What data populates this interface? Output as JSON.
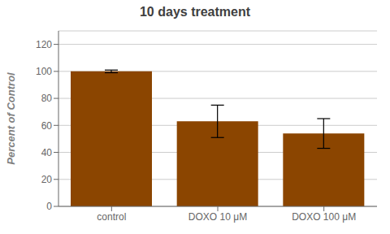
{
  "chart_data": {
    "type": "bar",
    "title": "10 days treatment",
    "ylabel": "Percent of Control",
    "categories": [
      "control",
      "DOXO 10 μM",
      "DOXO 100 μM"
    ],
    "values": [
      100,
      63,
      54
    ],
    "errors": [
      1,
      12,
      11
    ],
    "color": "#8B4500",
    "ylim": [
      0,
      130
    ],
    "yticks": [
      0,
      20,
      40,
      60,
      80,
      100,
      120
    ],
    "grid": true
  }
}
